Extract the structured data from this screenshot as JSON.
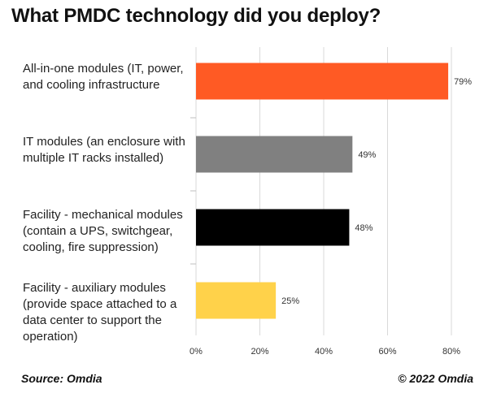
{
  "chart_data": {
    "type": "bar",
    "orientation": "horizontal",
    "title": "What PMDC technology did you deploy?",
    "categories": [
      "All-in-one modules (IT, power, and cooling infrastructure",
      "IT modules (an enclosure with multiple IT racks installed)",
      "Facility - mechanical modules (contain a UPS, switchgear, cooling, fire suppression)",
      "Facility - auxiliary modules (provide space attached to a data center to support the operation)"
    ],
    "category_lines": [
      [
        "All-in-one modules (IT, power,",
        "and cooling infrastructure"
      ],
      [
        "IT modules (an enclosure with",
        "multiple IT racks installed)"
      ],
      [
        "Facility - mechanical modules",
        "(contain a UPS, switchgear,",
        "cooling, fire suppression)"
      ],
      [
        "Facility - auxiliary modules",
        "(provide space attached to a",
        "data center to support the",
        "operation)"
      ]
    ],
    "values": [
      79,
      49,
      48,
      25
    ],
    "value_labels": [
      "79%",
      "49%",
      "48%",
      "25%"
    ],
    "colors": [
      "#ff5a24",
      "#808080",
      "#000000",
      "#ffd24a"
    ],
    "xlim": [
      0,
      80
    ],
    "xticks": [
      0,
      20,
      40,
      60,
      80
    ],
    "xtick_labels": [
      "0%",
      "20%",
      "40%",
      "60%",
      "80%"
    ],
    "grid": true
  },
  "footer": {
    "source": "Source: Omdia",
    "copyright": "© 2022 Omdia"
  }
}
